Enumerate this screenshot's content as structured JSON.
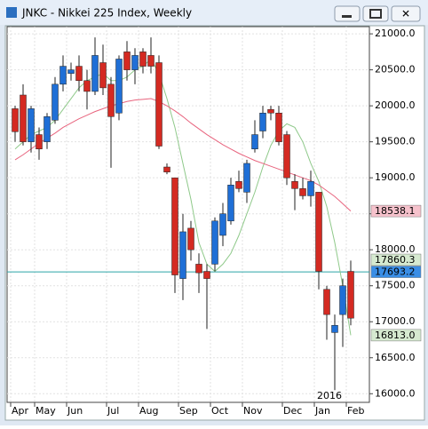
{
  "window_title": "JNKC - Nikkei 225 Index, Weekly",
  "chart_data": {
    "type": "candlestick",
    "categories": [
      "Apr",
      null,
      null,
      "May",
      null,
      null,
      null,
      "Jun",
      null,
      null,
      null,
      null,
      "Jul",
      null,
      null,
      null,
      "Aug",
      null,
      null,
      null,
      null,
      "Sep",
      null,
      null,
      null,
      "Oct",
      null,
      null,
      null,
      "Nov",
      null,
      null,
      null,
      null,
      "Dec",
      null,
      null,
      null,
      "Jan",
      null,
      null,
      null,
      "Feb"
    ],
    "annotations": [
      {
        "text": "2016",
        "category_index": 38
      }
    ],
    "open": [
      19960,
      20150,
      19500,
      19600,
      19500,
      19800,
      20300,
      20450,
      20550,
      20350,
      20200,
      20600,
      20300,
      19900,
      20750,
      20500,
      20750,
      20700,
      20600,
      19150,
      19000,
      17600,
      18300,
      17800,
      17700,
      17800,
      18200,
      18400,
      18950,
      18800,
      19400,
      19650,
      19950,
      19900,
      19600,
      18950,
      18850,
      18750,
      18800,
      17450,
      16850,
      17100,
      17700
    ],
    "high": [
      20000,
      20300,
      20000,
      19700,
      19900,
      20400,
      20700,
      20600,
      20700,
      20500,
      20950,
      20850,
      20400,
      20700,
      20900,
      20800,
      20800,
      20950,
      20700,
      19200,
      19000,
      18500,
      18400,
      17950,
      17800,
      18450,
      18650,
      19000,
      19100,
      19250,
      19800,
      20000,
      20000,
      20000,
      19650,
      19050,
      19000,
      19100,
      18800,
      17500,
      17100,
      17600,
      17850
    ],
    "low": [
      19500,
      19450,
      19350,
      19250,
      19400,
      19750,
      20200,
      20350,
      20200,
      19950,
      20150,
      20150,
      19140,
      19800,
      20350,
      20300,
      20450,
      20450,
      19400,
      19050,
      17400,
      17300,
      17850,
      17400,
      16900,
      17700,
      18050,
      18350,
      18800,
      18650,
      19350,
      19550,
      19800,
      19450,
      18900,
      18550,
      18700,
      18600,
      17450,
      16750,
      16050,
      16650,
      16950
    ],
    "close": [
      19640,
      19500,
      19960,
      19400,
      19850,
      20300,
      20550,
      20500,
      20350,
      20200,
      20700,
      20250,
      19850,
      20650,
      20500,
      20700,
      20550,
      20550,
      19440,
      19080,
      17650,
      18250,
      18000,
      17680,
      17600,
      18400,
      18500,
      18900,
      18850,
      19200,
      19600,
      19900,
      19900,
      19500,
      19000,
      18850,
      18750,
      18950,
      17700,
      17100,
      16950,
      17500,
      17050
    ],
    "up_color": "#1f6fd6",
    "down_color": "#d42a22",
    "series": [
      {
        "name": "MA short",
        "color": "#8fc98a",
        "values": [
          19400,
          19500,
          19600,
          19650,
          19700,
          19800,
          19950,
          20100,
          20250,
          20350,
          20400,
          20450,
          20350,
          20350,
          20400,
          20500,
          20550,
          20650,
          20450,
          20100,
          19700,
          19200,
          18700,
          18100,
          17800,
          17700,
          17800,
          17950,
          18200,
          18500,
          18800,
          19150,
          19450,
          19650,
          19750,
          19700,
          19500,
          19200,
          18950,
          18600,
          18100,
          17500,
          16813
        ]
      },
      {
        "name": "MA long",
        "color": "#e8647e",
        "values": [
          19250,
          19320,
          19400,
          19480,
          19550,
          19620,
          19700,
          19760,
          19820,
          19870,
          19920,
          19960,
          20000,
          20030,
          20060,
          20080,
          20090,
          20100,
          20060,
          20000,
          19930,
          19850,
          19760,
          19680,
          19600,
          19530,
          19460,
          19400,
          19340,
          19290,
          19240,
          19200,
          19160,
          19120,
          19080,
          19040,
          19000,
          18960,
          18900,
          18820,
          18740,
          18640,
          18538.1
        ]
      }
    ],
    "price_line": {
      "value": 17693.2,
      "color": "#2aa5a8"
    },
    "price_markers": [
      {
        "value": 18538.1,
        "label": "18538.1",
        "color": "#f6c2cc"
      },
      {
        "value": 17860.3,
        "label": "17860.3",
        "color": "#d6ead0"
      },
      {
        "value": 17693.2,
        "label": "17693.2",
        "color": "#3a8ee6"
      },
      {
        "value": 16813,
        "label": "16813.0",
        "color": "#d6ead0"
      }
    ],
    "ylim": [
      15880,
      21100
    ],
    "yticks": [
      {
        "value": 16000,
        "label": "16000.0"
      },
      {
        "value": 16500,
        "label": "16500.0"
      },
      {
        "value": 17000,
        "label": "17000.0"
      },
      {
        "value": 17500,
        "label": "17500.0"
      },
      {
        "value": 18000,
        "label": "18000.0"
      },
      {
        "value": 18500,
        "label": "18500.0"
      },
      {
        "value": 19000,
        "label": "19000.0"
      },
      {
        "value": 19500,
        "label": "19500.0"
      },
      {
        "value": 20000,
        "label": "20000.0"
      },
      {
        "value": 20500,
        "label": "20500.0"
      },
      {
        "value": 21000,
        "label": "21000.0"
      }
    ],
    "grid": true
  }
}
